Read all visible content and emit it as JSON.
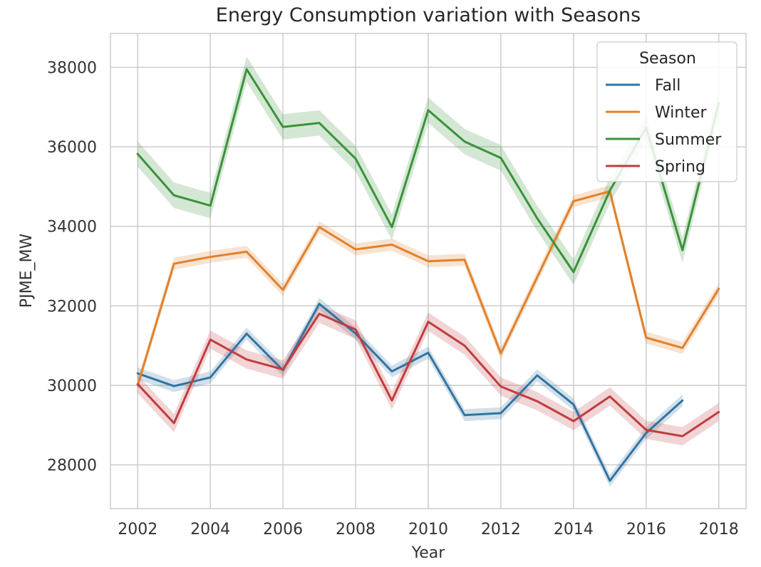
{
  "chart_data": {
    "type": "line",
    "title": "Energy Consumption variation with Seasons",
    "xlabel": "Year",
    "ylabel": "PJME_MW",
    "xlim": [
      2001.25,
      2018.75
    ],
    "ylim": [
      26900,
      38850
    ],
    "xticks": [
      2002,
      2004,
      2006,
      2008,
      2010,
      2012,
      2014,
      2016,
      2018
    ],
    "yticks": [
      28000,
      30000,
      32000,
      34000,
      36000,
      38000
    ],
    "grid": true,
    "legend": {
      "title": "Season",
      "position": "top-right"
    },
    "series": [
      {
        "name": "Fall",
        "color": "#3274a1",
        "x": [
          2002,
          2003,
          2004,
          2005,
          2006,
          2007,
          2008,
          2009,
          2010,
          2011,
          2012,
          2013,
          2014,
          2015,
          2016,
          2017
        ],
        "y": [
          30300,
          29980,
          30200,
          31300,
          30380,
          32050,
          31300,
          30350,
          30820,
          29250,
          29300,
          30250,
          29520,
          27600,
          28800,
          29620
        ],
        "ci": 150
      },
      {
        "name": "Winter",
        "color": "#e1812c",
        "x": [
          2002,
          2003,
          2004,
          2005,
          2006,
          2007,
          2008,
          2009,
          2010,
          2011,
          2012,
          2013,
          2014,
          2015,
          2016,
          2017,
          2018
        ],
        "y": [
          30000,
          33060,
          33230,
          33360,
          32400,
          33980,
          33420,
          33540,
          33120,
          33160,
          30800,
          32720,
          34630,
          34880,
          31200,
          30940,
          32430
        ],
        "ci": 150
      },
      {
        "name": "Summer",
        "color": "#3a923a",
        "x": [
          2002,
          2003,
          2004,
          2005,
          2006,
          2007,
          2008,
          2009,
          2010,
          2011,
          2012,
          2013,
          2014,
          2015,
          2016,
          2017,
          2018
        ],
        "y": [
          35820,
          34780,
          34520,
          37950,
          36500,
          36600,
          35700,
          33980,
          36920,
          36130,
          35720,
          34200,
          32850,
          34900,
          36480,
          33400,
          37100
        ],
        "ci": 320
      },
      {
        "name": "Spring",
        "color": "#c03d3e",
        "x": [
          2002,
          2003,
          2004,
          2005,
          2006,
          2007,
          2008,
          2009,
          2010,
          2011,
          2012,
          2013,
          2014,
          2015,
          2016,
          2017,
          2018
        ],
        "y": [
          30030,
          29050,
          31150,
          30650,
          30400,
          31800,
          31400,
          29620,
          31600,
          31000,
          29970,
          29600,
          29100,
          29720,
          28880,
          28720,
          29330
        ],
        "ci": 230
      }
    ]
  }
}
